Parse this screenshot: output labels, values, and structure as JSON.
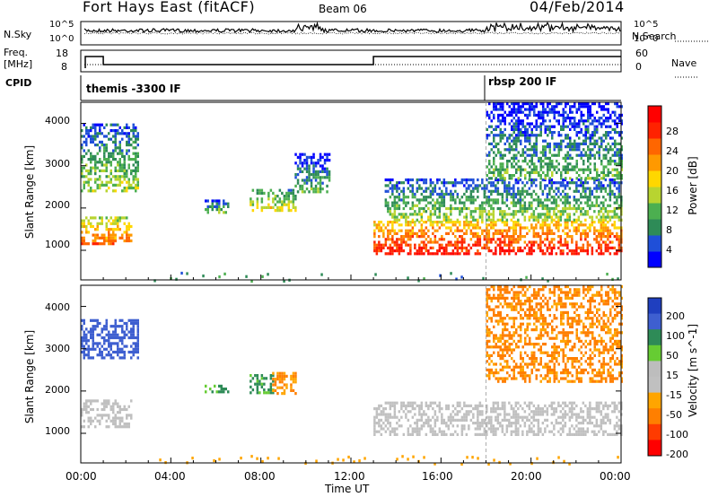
{
  "header": {
    "station": "Fort Hays East (fitACF)",
    "beam": "Beam 06",
    "date": "04/Feb/2014"
  },
  "small_panels": {
    "noise_left_label": "N.Sky",
    "noise_right_label": "N.Search",
    "noise_left_ticks": [
      "10^5",
      "10^0"
    ],
    "noise_right_ticks": [
      "10^5",
      "10^0"
    ],
    "freq_label_line1": "Freq.",
    "freq_label_line2": "[MHz]",
    "freq_ticks": [
      "18",
      "8"
    ],
    "nave_label": "Nave",
    "nave_ticks": [
      "60",
      "0"
    ],
    "cpid_label": "CPID",
    "cpid_segments": [
      "themis -3300 IF",
      "rbsp 200 IF"
    ]
  },
  "colors": {
    "power_scale": [
      "#0000ff",
      "#1f4fd8",
      "#2e8b57",
      "#4caf50",
      "#b8d430",
      "#ffd700",
      "#ff9900",
      "#ff6600",
      "#ff2200",
      "#ff0000"
    ],
    "velocity_scale": [
      "#1f3fbf",
      "#3e5fd0",
      "#2e8b57",
      "#66cc33",
      "#bdbdbd",
      "#c0c0c0",
      "#ffa500",
      "#ff7f00",
      "#ff3b00",
      "#ff0000"
    ],
    "ground_scatter": "#c0c0c0"
  },
  "chart_data": [
    {
      "type": "heatmap",
      "panel": "power",
      "xlabel": "Time UT",
      "ylabel": "Slant Range [km]",
      "xticks": [
        "00:00",
        "04:00",
        "08:00",
        "12:00",
        "16:00",
        "20:00",
        "00:00"
      ],
      "yticks": [
        "1000",
        "2000",
        "3000",
        "4000"
      ],
      "xlim": [
        0,
        24
      ],
      "ylim": [
        300,
        4500
      ],
      "colorbar_label": "Power [dB]",
      "colorbar_ticks": [
        "4",
        "8",
        "12",
        "16",
        "20",
        "24",
        "28"
      ],
      "blobs": [
        {
          "t0": 0.0,
          "t1": 2.2,
          "r0": 1150,
          "r1": 1800,
          "level": 18
        },
        {
          "t0": 0.0,
          "t1": 2.5,
          "r0": 2400,
          "r1": 4000,
          "level": 9
        },
        {
          "t0": 5.5,
          "t1": 6.5,
          "r0": 1900,
          "r1": 2200,
          "level": 8
        },
        {
          "t0": 7.5,
          "t1": 9.5,
          "r0": 1950,
          "r1": 2450,
          "level": 12
        },
        {
          "t0": 9.5,
          "t1": 11.0,
          "r0": 2400,
          "r1": 3300,
          "level": 6
        },
        {
          "t0": 13.0,
          "t1": 24.0,
          "r0": 950,
          "r1": 1700,
          "level": 22
        },
        {
          "t0": 13.5,
          "t1": 24.0,
          "r0": 1700,
          "r1": 2700,
          "level": 9
        },
        {
          "t0": 18.0,
          "t1": 24.0,
          "r0": 2700,
          "r1": 4500,
          "level": 6
        }
      ]
    },
    {
      "type": "heatmap",
      "panel": "velocity",
      "xlabel": "Time UT",
      "ylabel": "Slant Range [km]",
      "xticks": [
        "00:00",
        "04:00",
        "08:00",
        "12:00",
        "16:00",
        "20:00",
        "00:00"
      ],
      "yticks": [
        "1000",
        "2000",
        "3000",
        "4000"
      ],
      "xlim": [
        0,
        24
      ],
      "ylim": [
        300,
        4500
      ],
      "colorbar_label": "Velocity [m s^-1]",
      "colorbar_ticks": [
        "200",
        "100",
        "50",
        "15",
        "-15",
        "-50",
        "-100",
        "-200"
      ],
      "blobs": [
        {
          "t0": 0.0,
          "t1": 2.2,
          "r0": 1150,
          "r1": 1800,
          "vel": 0
        },
        {
          "t0": 0.0,
          "t1": 2.5,
          "r0": 2800,
          "r1": 3700,
          "vel": 150
        },
        {
          "t0": 5.5,
          "t1": 6.5,
          "r0": 1950,
          "r1": 2150,
          "vel": 60
        },
        {
          "t0": 7.5,
          "t1": 8.5,
          "r0": 1950,
          "r1": 2400,
          "vel": 70
        },
        {
          "t0": 8.5,
          "t1": 9.5,
          "r0": 1950,
          "r1": 2450,
          "vel": -50
        },
        {
          "t0": 13.0,
          "t1": 24.0,
          "r0": 950,
          "r1": 1750,
          "vel": 0
        },
        {
          "t0": 18.0,
          "t1": 24.0,
          "r0": 2200,
          "r1": 4500,
          "vel": -60
        }
      ]
    }
  ]
}
